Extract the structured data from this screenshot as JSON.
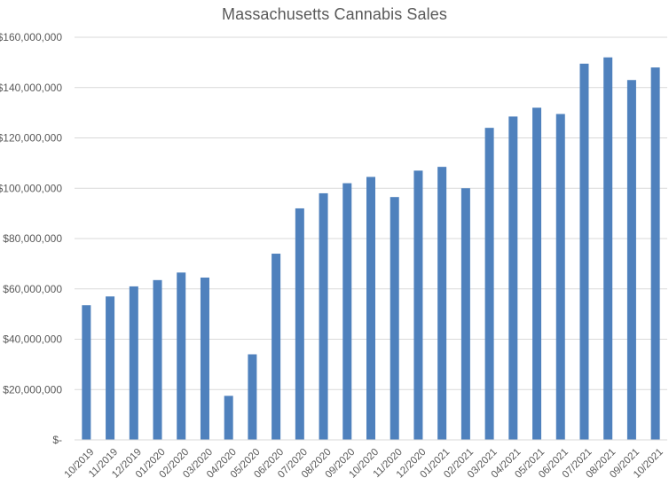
{
  "colors": {
    "bar": "#4f81bd",
    "gridline": "#d9d9d9",
    "axis_text": "#595959",
    "title_text": "#595959"
  },
  "chart_data": {
    "type": "bar",
    "title": "Massachusetts Cannabis Sales",
    "xlabel": "",
    "ylabel": "",
    "ylim": [
      0,
      160000000
    ],
    "y_ticks": [
      0,
      20000000,
      40000000,
      60000000,
      80000000,
      100000000,
      120000000,
      140000000,
      160000000
    ],
    "y_tick_labels": [
      "$-",
      "$20,000,000",
      "$40,000,000",
      "$60,000,000",
      "$80,000,000",
      "$100,000,000",
      "$120,000,000",
      "$140,000,000",
      "$160,000,000"
    ],
    "grid": true,
    "legend": "none",
    "categories": [
      "10/2019",
      "11/2019",
      "12/2019",
      "01/2020",
      "02/2020",
      "03/2020",
      "04/2020",
      "05/2020",
      "06/2020",
      "07/2020",
      "08/2020",
      "09/2020",
      "10/2020",
      "11/2020",
      "12/2020",
      "01/2021",
      "02/2021",
      "03/2021",
      "04/2021",
      "05/2021",
      "06/2021",
      "07/2021",
      "08/2021",
      "09/2021",
      "10/2021"
    ],
    "values": [
      53500000,
      57000000,
      61000000,
      63500000,
      66500000,
      64500000,
      17500000,
      34000000,
      74000000,
      92000000,
      98000000,
      102000000,
      104500000,
      96500000,
      107000000,
      108500000,
      100000000,
      124000000,
      128500000,
      132000000,
      129500000,
      149500000,
      152000000,
      143000000,
      148000000
    ]
  }
}
